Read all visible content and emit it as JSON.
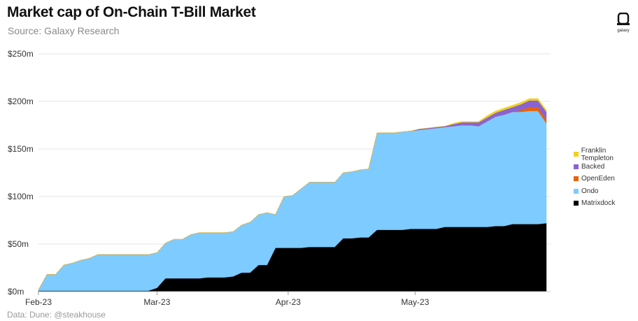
{
  "header": {
    "title": "Market cap of On-Chain T-Bill Market",
    "subtitle": "Source: Galaxy Research",
    "logo_text": "galaxy"
  },
  "footer": {
    "text": "Data: Dune: @steakhouse"
  },
  "chart_data": {
    "type": "area",
    "stacked": true,
    "title": "Market cap of On-Chain T-Bill Market",
    "subtitle": "Source: Galaxy Research",
    "xlabel": "",
    "ylabel": "",
    "ylim": [
      0,
      250
    ],
    "xlim": [
      "2023-02-01",
      "2023-06-02"
    ],
    "y_ticks": [
      0,
      50,
      100,
      150,
      200,
      250
    ],
    "y_tick_labels": [
      "$0m",
      "$50m",
      "$100m",
      "$150m",
      "$200m",
      "$250m"
    ],
    "x_ticks": [
      "2023-02-01",
      "2023-03-01",
      "2023-04-01",
      "2023-05-01"
    ],
    "x_tick_labels": [
      "Feb-23",
      "Mar-23",
      "Apr-23",
      "May-23"
    ],
    "grid": "horizontal",
    "legend_position": "right",
    "x": [
      "2023-02-01",
      "2023-02-03",
      "2023-02-05",
      "2023-02-07",
      "2023-02-09",
      "2023-02-11",
      "2023-02-13",
      "2023-02-15",
      "2023-02-17",
      "2023-02-19",
      "2023-02-21",
      "2023-02-23",
      "2023-02-25",
      "2023-02-27",
      "2023-03-01",
      "2023-03-03",
      "2023-03-05",
      "2023-03-07",
      "2023-03-09",
      "2023-03-11",
      "2023-03-13",
      "2023-03-15",
      "2023-03-17",
      "2023-03-19",
      "2023-03-21",
      "2023-03-23",
      "2023-03-25",
      "2023-03-27",
      "2023-03-29",
      "2023-03-31",
      "2023-04-02",
      "2023-04-04",
      "2023-04-06",
      "2023-04-08",
      "2023-04-10",
      "2023-04-12",
      "2023-04-14",
      "2023-04-16",
      "2023-04-18",
      "2023-04-20",
      "2023-04-22",
      "2023-04-24",
      "2023-04-26",
      "2023-04-28",
      "2023-04-30",
      "2023-05-02",
      "2023-05-04",
      "2023-05-06",
      "2023-05-08",
      "2023-05-10",
      "2023-05-12",
      "2023-05-14",
      "2023-05-16",
      "2023-05-18",
      "2023-05-20",
      "2023-05-22",
      "2023-05-24",
      "2023-05-26",
      "2023-05-28",
      "2023-05-30",
      "2023-06-01"
    ],
    "series": [
      {
        "name": "Matrixdock",
        "color": "#000000",
        "values": [
          1,
          1,
          1,
          1,
          1,
          1,
          1,
          1,
          1,
          1,
          1,
          1,
          1,
          1,
          4,
          14,
          14,
          14,
          14,
          14,
          15,
          15,
          15,
          16,
          20,
          20,
          28,
          28,
          46,
          46,
          46,
          46,
          47,
          47,
          47,
          47,
          56,
          56,
          57,
          57,
          65,
          65,
          65,
          65,
          66,
          66,
          66,
          66,
          68,
          68,
          68,
          68,
          68,
          68,
          69,
          69,
          71,
          71,
          71,
          71,
          72
        ]
      },
      {
        "name": "Ondo",
        "color": "#7ecbff",
        "values": [
          1,
          17,
          17,
          27,
          29,
          32,
          34,
          38,
          38,
          38,
          38,
          38,
          38,
          38,
          37,
          37,
          41,
          41,
          46,
          48,
          47,
          47,
          47,
          47,
          50,
          53,
          53,
          55,
          35,
          54,
          55,
          62,
          68,
          68,
          68,
          68,
          69,
          70,
          71,
          72,
          102,
          102,
          102,
          103,
          103,
          104,
          105,
          106,
          105,
          106,
          107,
          107,
          106,
          111,
          115,
          117,
          118,
          118,
          119,
          119,
          105
        ]
      },
      {
        "name": "OpenEden",
        "color": "#e8620b",
        "values": [
          0,
          0,
          0,
          0,
          0,
          0,
          0,
          0,
          0,
          0,
          0,
          0,
          0,
          0,
          0,
          0,
          0,
          0,
          0,
          0,
          0,
          0,
          0,
          0,
          0,
          0,
          0,
          0,
          0,
          0,
          0,
          0,
          0,
          0,
          0,
          0,
          0,
          0,
          0,
          0,
          0,
          0,
          0,
          0,
          0,
          0,
          0,
          0,
          0,
          0,
          0,
          0,
          0,
          0,
          0,
          0,
          0,
          2,
          4,
          4,
          4
        ]
      },
      {
        "name": "Backed",
        "color": "#8a63d2",
        "values": [
          0,
          0,
          0,
          0,
          0,
          0,
          0,
          0,
          0,
          0,
          0,
          0,
          0,
          0,
          0,
          0,
          0,
          0,
          0,
          0,
          0,
          0,
          0,
          0,
          0,
          0,
          0,
          0,
          0,
          0,
          0,
          0,
          0,
          0,
          0,
          0,
          0,
          0,
          0,
          0,
          0,
          0,
          0,
          0,
          0,
          1,
          1,
          1,
          1,
          2,
          3,
          3,
          4,
          4,
          4,
          5,
          5,
          6,
          7,
          7,
          8
        ]
      },
      {
        "name": "Franklin Templeton",
        "color": "#f2d21b",
        "values": [
          0,
          0,
          0,
          0,
          0,
          0,
          0,
          0,
          0,
          0,
          0,
          0,
          0,
          0,
          0,
          0,
          0,
          0,
          0,
          0,
          0,
          0,
          0,
          0,
          0,
          0,
          0,
          0,
          0,
          0,
          0,
          0,
          0,
          0,
          0,
          0,
          0,
          0,
          0,
          0,
          0,
          0,
          0,
          0,
          0,
          0,
          0,
          0,
          0,
          1,
          1,
          1,
          1,
          2,
          2,
          2,
          2,
          2,
          2,
          2,
          2
        ]
      }
    ],
    "legend_order": [
      "Franklin Templeton",
      "Backed",
      "OpenEden",
      "Ondo",
      "Matrixdock"
    ]
  }
}
